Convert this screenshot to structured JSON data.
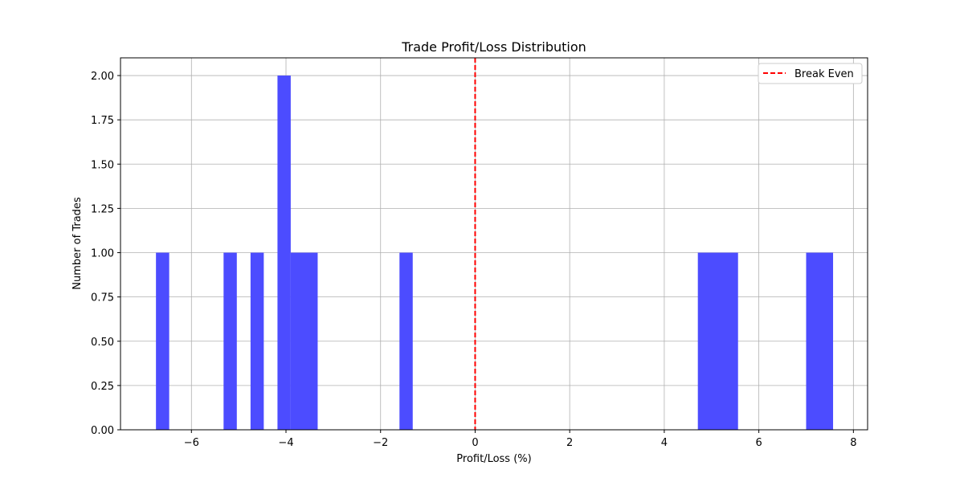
{
  "chart_data": {
    "type": "bar",
    "title": "Trade Profit/Loss Distribution",
    "xlabel": "Profit/Loss (%)",
    "ylabel": "Number of Trades",
    "xlim": [
      -7.5,
      8.3
    ],
    "ylim": [
      0,
      2.1
    ],
    "grid": true,
    "xticks": [
      -6,
      -4,
      -2,
      0,
      2,
      4,
      6,
      8
    ],
    "xtick_labels": [
      "−6",
      "−4",
      "−2",
      "0",
      "2",
      "4",
      "6",
      "8"
    ],
    "yticks": [
      0,
      0.25,
      0.5,
      0.75,
      1.0,
      1.25,
      1.5,
      1.75,
      2.0
    ],
    "ytick_labels": [
      "0.00",
      "0.25",
      "0.50",
      "0.75",
      "1.00",
      "1.25",
      "1.50",
      "1.75",
      "2.00"
    ],
    "bar_color": "#4c4cff",
    "bins": [
      {
        "x0": -6.75,
        "x1": -6.47,
        "count": 1
      },
      {
        "x0": -5.32,
        "x1": -5.04,
        "count": 1
      },
      {
        "x0": -4.75,
        "x1": -4.47,
        "count": 1
      },
      {
        "x0": -4.18,
        "x1": -3.9,
        "count": 2
      },
      {
        "x0": -3.9,
        "x1": -3.33,
        "count": 1
      },
      {
        "x0": -1.6,
        "x1": -1.32,
        "count": 1
      },
      {
        "x0": 4.71,
        "x1": 5.56,
        "count": 1
      },
      {
        "x0": 7.0,
        "x1": 7.57,
        "count": 1
      }
    ],
    "reference_line": {
      "x": 0,
      "label": "Break Even",
      "color": "#ff0000",
      "style": "dashed"
    },
    "legend": {
      "position": "top-right",
      "entries": [
        "Break Even"
      ]
    }
  }
}
